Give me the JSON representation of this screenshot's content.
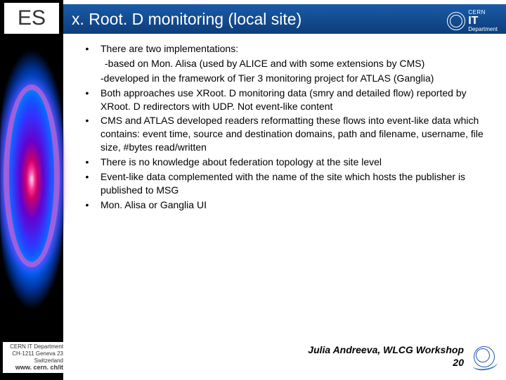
{
  "badge": "ES",
  "title": "x. Root. D monitoring (local site)",
  "logo": {
    "line1": "CERN",
    "it": "IT",
    "dept": "Department"
  },
  "bullets": [
    {
      "text": "There are two implementations:",
      "sub": [
        "-based on Mon. Alisa (used by ALICE and  with some extensions by CMS)",
        "-developed in the framework of Tier 3         monitoring project for ATLAS (Ganglia)"
      ]
    },
    {
      "text": "Both approaches use XRoot. D monitoring data (smry and detailed flow) reported by XRoot. D redirectors with UDP. Not event-like content"
    },
    {
      "text": "CMS and ATLAS developed readers reformatting these flows into event-like data which contains: event time, source and destination domains, path and filename, username, file size, #bytes read/written"
    },
    {
      "text": "There is no knowledge about federation topology at the site level"
    },
    {
      "text": "Event-like data complemented with the name of the site   which hosts the publisher  is published to MSG"
    },
    {
      "text": "Mon. Alisa or Ganglia UI"
    }
  ],
  "footer": {
    "org": "CERN IT Department",
    "addr1": "CH-1211 Geneva 23",
    "addr2": "Switzerland",
    "url": "www. cern. ch/it",
    "credit": "Julia Andreeva, WLCG Workshop",
    "page": "20"
  }
}
